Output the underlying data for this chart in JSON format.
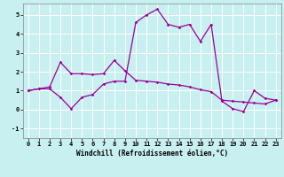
{
  "xlabel": "Windchill (Refroidissement éolien,°C)",
  "bg_color": "#c8f0f0",
  "line_color": "#990099",
  "grid_color": "#ffffff",
  "xlim": [
    -0.5,
    23.5
  ],
  "ylim": [
    -1.5,
    5.6
  ],
  "xticks": [
    0,
    1,
    2,
    3,
    4,
    5,
    6,
    7,
    8,
    9,
    10,
    11,
    12,
    13,
    14,
    15,
    16,
    17,
    18,
    19,
    20,
    21,
    22,
    23
  ],
  "yticks": [
    -1,
    0,
    1,
    2,
    3,
    4,
    5
  ],
  "line1_x": [
    0,
    1,
    2,
    3,
    4,
    5,
    6,
    7,
    8,
    9,
    10,
    11,
    12,
    13,
    14,
    15,
    16,
    17,
    18,
    19,
    20,
    21,
    22,
    23
  ],
  "line1_y": [
    1.0,
    1.1,
    1.1,
    0.65,
    0.05,
    0.65,
    0.8,
    1.35,
    1.5,
    1.5,
    4.6,
    5.0,
    5.3,
    4.5,
    4.35,
    4.5,
    3.6,
    4.5,
    0.45,
    0.05,
    -0.1,
    1.0,
    0.6,
    0.5
  ],
  "line2_x": [
    0,
    1,
    2,
    3,
    4,
    5,
    6,
    7,
    8,
    9,
    10,
    11,
    12,
    13,
    14,
    15,
    16,
    17,
    18,
    19,
    20,
    21,
    22,
    23
  ],
  "line2_y": [
    1.0,
    1.1,
    1.2,
    2.5,
    1.9,
    1.9,
    1.85,
    1.9,
    2.6,
    2.05,
    1.55,
    1.5,
    1.45,
    1.35,
    1.3,
    1.2,
    1.05,
    0.95,
    0.5,
    0.45,
    0.4,
    0.35,
    0.3,
    0.5
  ],
  "xlabel_fontsize": 5.5,
  "tick_fontsize": 5.0,
  "spine_color": "#888888"
}
